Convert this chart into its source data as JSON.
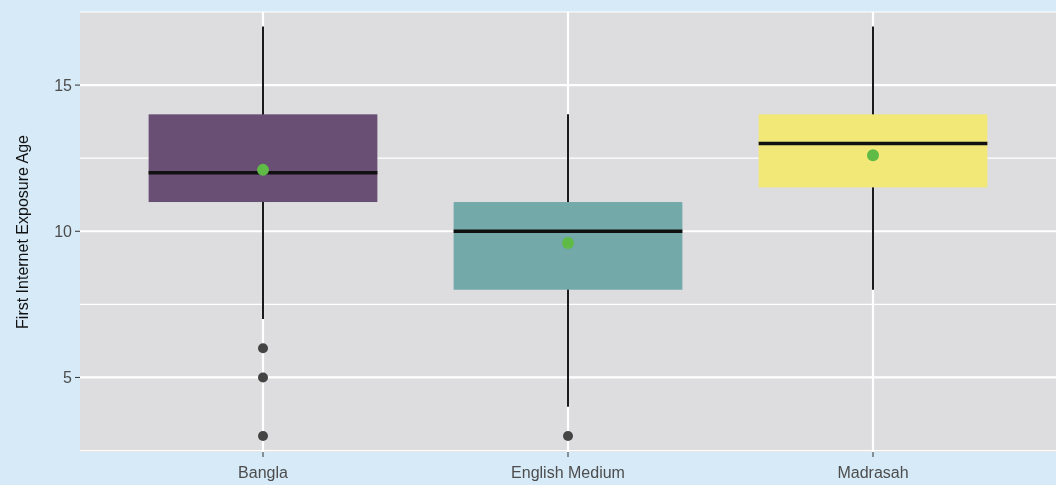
{
  "chart_data": {
    "type": "box",
    "ylabel": "First Internet Exposure Age",
    "categories": [
      "Bangla",
      "English Medium",
      "Madrasah"
    ],
    "colors": [
      "#6a4f74",
      "#74a9a9",
      "#f1e878"
    ],
    "boxes": [
      {
        "low": 7,
        "q1": 11,
        "median": 12,
        "q3": 14,
        "high": 17,
        "mean": 12.1,
        "outliers": [
          6,
          5,
          3
        ]
      },
      {
        "low": 4,
        "q1": 8,
        "median": 10,
        "q3": 11,
        "high": 14,
        "mean": 9.6,
        "outliers": [
          3
        ]
      },
      {
        "low": 8,
        "q1": 11.5,
        "median": 13,
        "q3": 14,
        "high": 17,
        "mean": 12.6
      }
    ],
    "ylim": [
      2.45,
      17.5
    ],
    "yticks": [
      {
        "value": 2.5,
        "label": null
      },
      5,
      {
        "value": 7.5,
        "label": null
      },
      10,
      {
        "value": 12.5,
        "label": null
      },
      15,
      {
        "value": 17.5,
        "label": null
      }
    ],
    "grid": true
  }
}
